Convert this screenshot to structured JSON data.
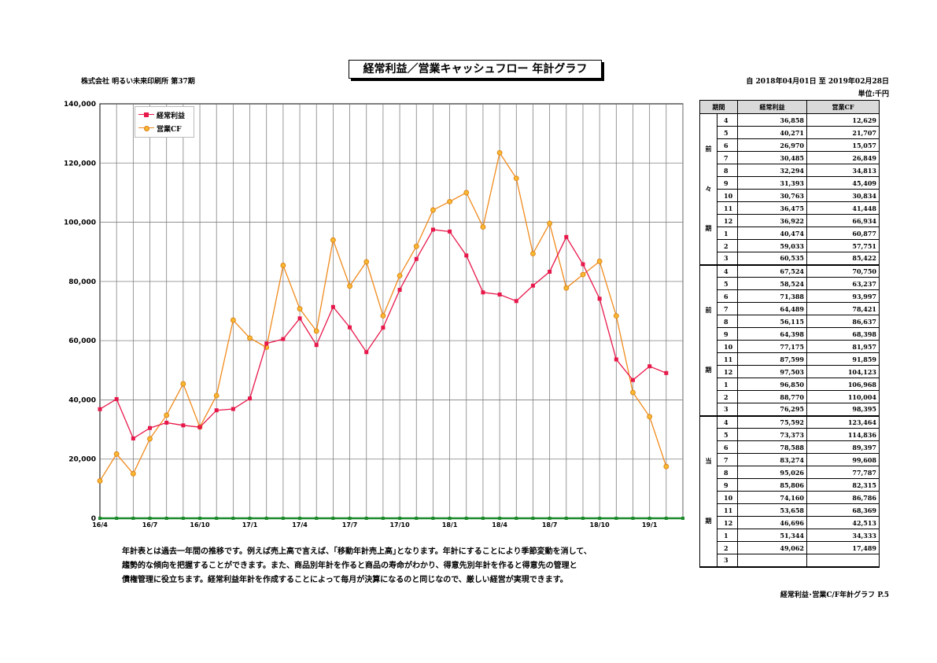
{
  "header": {
    "title": "経常利益／営業キャッシュフロー 年計グラフ",
    "company": "株式会社  明るい未来印刷所   第37期",
    "period": "自 2018年04月01日 至 2019年02月28日",
    "unit": "単位:千円"
  },
  "chart_data": {
    "type": "line",
    "title": "",
    "xlabel": "",
    "ylabel": "",
    "ylim": [
      0,
      140000
    ],
    "yticks": [
      "0",
      "20,000",
      "40,000",
      "60,000",
      "80,000",
      "100,000",
      "120,000",
      "140,000"
    ],
    "ytick_values": [
      0,
      20000,
      40000,
      60000,
      80000,
      100000,
      120000,
      140000
    ],
    "x": [
      "16/4",
      "16/5",
      "16/6",
      "16/7",
      "16/8",
      "16/9",
      "16/10",
      "16/11",
      "16/12",
      "17/1",
      "17/2",
      "17/3",
      "17/4",
      "17/5",
      "17/6",
      "17/7",
      "17/8",
      "17/9",
      "17/10",
      "17/11",
      "17/12",
      "18/1",
      "18/2",
      "18/3",
      "18/4",
      "18/5",
      "18/6",
      "18/7",
      "18/8",
      "18/9",
      "18/10",
      "18/11",
      "18/12",
      "19/1",
      "19/2",
      "19/3"
    ],
    "xtick_labels": [
      "16/4",
      "",
      "",
      "16/7",
      "",
      "",
      "16/10",
      "",
      "",
      "17/1",
      "",
      "",
      "17/4",
      "",
      "",
      "17/7",
      "",
      "",
      "17/10",
      "",
      "",
      "18/1",
      "",
      "",
      "18/4",
      "",
      "",
      "18/7",
      "",
      "",
      "18/10",
      "",
      "",
      "19/1",
      "",
      ""
    ],
    "grid": true,
    "legend_position": "top-left",
    "series": [
      {
        "name": "経常利益",
        "color": "#e8174a",
        "marker": "square",
        "values": [
          36858,
          40271,
          26970,
          30485,
          32294,
          31393,
          30763,
          36475,
          36922,
          40474,
          59033,
          60535,
          67524,
          58524,
          71388,
          64489,
          56115,
          64398,
          77175,
          87599,
          97503,
          96850,
          88770,
          76295,
          75592,
          73373,
          78588,
          83274,
          95026,
          85806,
          74160,
          53658,
          46696,
          51344,
          49062,
          null
        ]
      },
      {
        "name": "営業CF",
        "color": "#f08a1c",
        "marker": "circle",
        "values": [
          12629,
          21707,
          15057,
          26849,
          34813,
          45409,
          30834,
          41448,
          66934,
          60877,
          57751,
          85422,
          70750,
          63237,
          93997,
          78421,
          86637,
          68398,
          81957,
          91859,
          104123,
          106968,
          110004,
          98395,
          123464,
          114836,
          89397,
          99608,
          77787,
          82315,
          86786,
          68369,
          42513,
          34333,
          17489,
          null
        ]
      }
    ],
    "zero_line_color": "#1a8a2a"
  },
  "note": {
    "line1": "年計表とは過去一年間の推移です。例えば売上高で言えば、｢移動年計売上高｣となります。年計にすることにより季節変動を消して、",
    "line2": "趨勢的な傾向を把握することができます。また、商品別年計を作ると商品の寿命がわかり、得意先別年計を作ると得意先の管理と",
    "line3": "債権管理に役立ちます。経常利益年計を作成することによって毎月が決算になるのと同じなので、厳しい経営が実現できます。"
  },
  "table": {
    "headers": [
      "期間",
      "経常利益",
      "営業CF"
    ],
    "groups": [
      {
        "label": [
          "前",
          "々",
          "期"
        ],
        "rows": [
          {
            "month": "4",
            "profit": "36,858",
            "cf": "12,629"
          },
          {
            "month": "5",
            "profit": "40,271",
            "cf": "21,707"
          },
          {
            "month": "6",
            "profit": "26,970",
            "cf": "15,057"
          },
          {
            "month": "7",
            "profit": "30,485",
            "cf": "26,849"
          },
          {
            "month": "8",
            "profit": "32,294",
            "cf": "34,813"
          },
          {
            "month": "9",
            "profit": "31,393",
            "cf": "45,409"
          },
          {
            "month": "10",
            "profit": "30,763",
            "cf": "30,834"
          },
          {
            "month": "11",
            "profit": "36,475",
            "cf": "41,448"
          },
          {
            "month": "12",
            "profit": "36,922",
            "cf": "66,934"
          },
          {
            "month": "1",
            "profit": "40,474",
            "cf": "60,877"
          },
          {
            "month": "2",
            "profit": "59,033",
            "cf": "57,751"
          },
          {
            "month": "3",
            "profit": "60,535",
            "cf": "85,422"
          }
        ]
      },
      {
        "label": [
          "前",
          "期"
        ],
        "rows": [
          {
            "month": "4",
            "profit": "67,524",
            "cf": "70,750"
          },
          {
            "month": "5",
            "profit": "58,524",
            "cf": "63,237"
          },
          {
            "month": "6",
            "profit": "71,388",
            "cf": "93,997"
          },
          {
            "month": "7",
            "profit": "64,489",
            "cf": "78,421"
          },
          {
            "month": "8",
            "profit": "56,115",
            "cf": "86,637"
          },
          {
            "month": "9",
            "profit": "64,398",
            "cf": "68,398"
          },
          {
            "month": "10",
            "profit": "77,175",
            "cf": "81,957"
          },
          {
            "month": "11",
            "profit": "87,599",
            "cf": "91,859"
          },
          {
            "month": "12",
            "profit": "97,503",
            "cf": "104,123"
          },
          {
            "month": "1",
            "profit": "96,850",
            "cf": "106,968"
          },
          {
            "month": "2",
            "profit": "88,770",
            "cf": "110,004"
          },
          {
            "month": "3",
            "profit": "76,295",
            "cf": "98,395"
          }
        ]
      },
      {
        "label": [
          "当",
          "期"
        ],
        "rows": [
          {
            "month": "4",
            "profit": "75,592",
            "cf": "123,464"
          },
          {
            "month": "5",
            "profit": "73,373",
            "cf": "114,836"
          },
          {
            "month": "6",
            "profit": "78,588",
            "cf": "89,397"
          },
          {
            "month": "7",
            "profit": "83,274",
            "cf": "99,608"
          },
          {
            "month": "8",
            "profit": "95,026",
            "cf": "77,787"
          },
          {
            "month": "9",
            "profit": "85,806",
            "cf": "82,315"
          },
          {
            "month": "10",
            "profit": "74,160",
            "cf": "86,786"
          },
          {
            "month": "11",
            "profit": "53,658",
            "cf": "68,369"
          },
          {
            "month": "12",
            "profit": "46,696",
            "cf": "42,513"
          },
          {
            "month": "1",
            "profit": "51,344",
            "cf": "34,333"
          },
          {
            "month": "2",
            "profit": "49,062",
            "cf": "17,489"
          },
          {
            "month": "3",
            "profit": "",
            "cf": ""
          }
        ]
      }
    ]
  },
  "footer": {
    "text": "経常利益･営業C/F年計グラフ      P.5"
  }
}
